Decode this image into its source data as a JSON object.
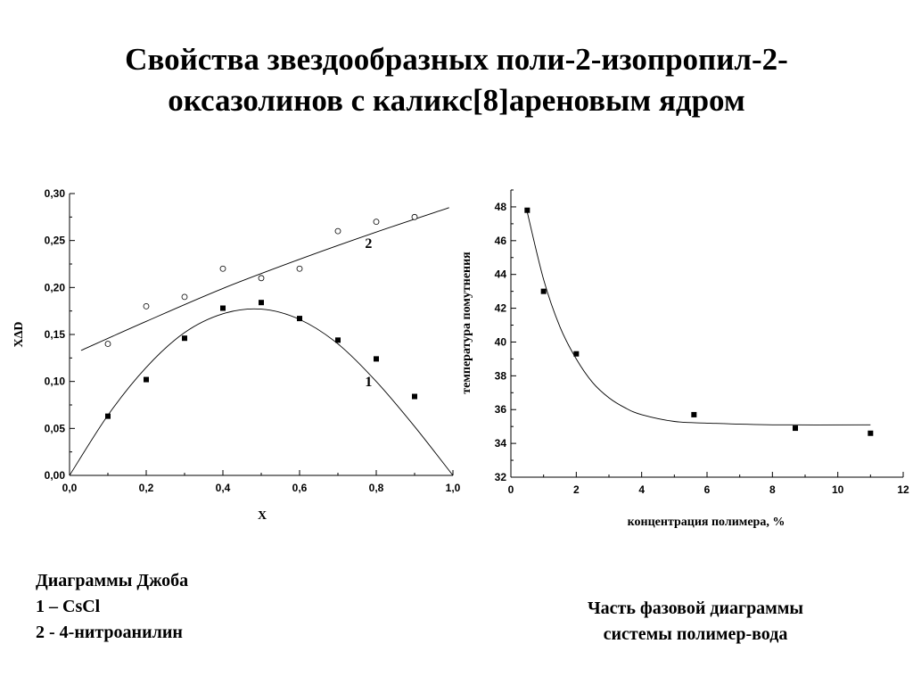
{
  "title": {
    "line1": "Свойства звездообразных поли-2-изопропил-2-",
    "line2": "оксазолинов с каликс[8]ареновым ядром"
  },
  "caption_left": {
    "line1": "Диаграммы Джоба",
    "line2": "1 – CsCl",
    "line3": "2 - 4-нитроанилин"
  },
  "caption_right": {
    "line1": "Часть фазовой диаграммы",
    "line2": "системы полимер-вода"
  },
  "chart_data": [
    {
      "type": "scatter",
      "xlabel": "X",
      "ylabel": "XΔD",
      "xlim": [
        0,
        1
      ],
      "ylim": [
        0,
        0.3
      ],
      "x_ticks": [
        "0,0",
        "0,2",
        "0,4",
        "0,6",
        "0,8",
        "1,0"
      ],
      "y_ticks": [
        "0,00",
        "0,05",
        "0,10",
        "0,15",
        "0,20",
        "0,25",
        "0,30"
      ],
      "grid": false,
      "series": [
        {
          "name": "1",
          "marker": "filled-square",
          "points": [
            [
              0.1,
              0.063
            ],
            [
              0.2,
              0.102
            ],
            [
              0.3,
              0.146
            ],
            [
              0.4,
              0.178
            ],
            [
              0.5,
              0.184
            ],
            [
              0.6,
              0.167
            ],
            [
              0.7,
              0.144
            ],
            [
              0.8,
              0.124
            ],
            [
              0.9,
              0.084
            ]
          ],
          "fit": [
            [
              0,
              0
            ],
            [
              0.1,
              0.064
            ],
            [
              0.2,
              0.115
            ],
            [
              0.3,
              0.152
            ],
            [
              0.4,
              0.172
            ],
            [
              0.5,
              0.177
            ],
            [
              0.6,
              0.166
            ],
            [
              0.7,
              0.14
            ],
            [
              0.8,
              0.1
            ],
            [
              0.9,
              0.052
            ],
            [
              1.0,
              0.0
            ]
          ]
        },
        {
          "name": "2",
          "marker": "open-circle",
          "points": [
            [
              0.1,
              0.14
            ],
            [
              0.2,
              0.18
            ],
            [
              0.3,
              0.19
            ],
            [
              0.4,
              0.22
            ],
            [
              0.5,
              0.21
            ],
            [
              0.6,
              0.22
            ],
            [
              0.7,
              0.26
            ],
            [
              0.8,
              0.27
            ],
            [
              0.9,
              0.275
            ]
          ],
          "fit": [
            [
              0.03,
              0.133
            ],
            [
              0.2,
              0.164
            ],
            [
              0.4,
              0.199
            ],
            [
              0.6,
              0.23
            ],
            [
              0.8,
              0.259
            ],
            [
              0.99,
              0.285
            ]
          ]
        }
      ]
    },
    {
      "type": "scatter",
      "xlabel": "концентрация полимера, %",
      "ylabel": "температура помутнения",
      "xlim": [
        0,
        12
      ],
      "ylim": [
        32,
        49
      ],
      "x_ticks": [
        "0",
        "2",
        "4",
        "6",
        "8",
        "10",
        "12"
      ],
      "y_ticks": [
        "32",
        "34",
        "36",
        "38",
        "40",
        "42",
        "44",
        "46",
        "48"
      ],
      "grid": false,
      "series": [
        {
          "marker": "filled-square",
          "points": [
            [
              0.5,
              47.8
            ],
            [
              1.0,
              43.0
            ],
            [
              2.0,
              39.3
            ],
            [
              5.6,
              35.7
            ],
            [
              8.7,
              34.9
            ],
            [
              11.0,
              34.6
            ]
          ],
          "fit": [
            [
              0.5,
              47.7
            ],
            [
              1.0,
              43.7
            ],
            [
              1.5,
              40.9
            ],
            [
              2.0,
              39.0
            ],
            [
              2.5,
              37.6
            ],
            [
              3.0,
              36.7
            ],
            [
              3.5,
              36.1
            ],
            [
              4.0,
              35.7
            ],
            [
              5.0,
              35.3
            ],
            [
              6.0,
              35.2
            ],
            [
              8.0,
              35.1
            ],
            [
              11.0,
              35.1
            ]
          ]
        }
      ]
    }
  ]
}
